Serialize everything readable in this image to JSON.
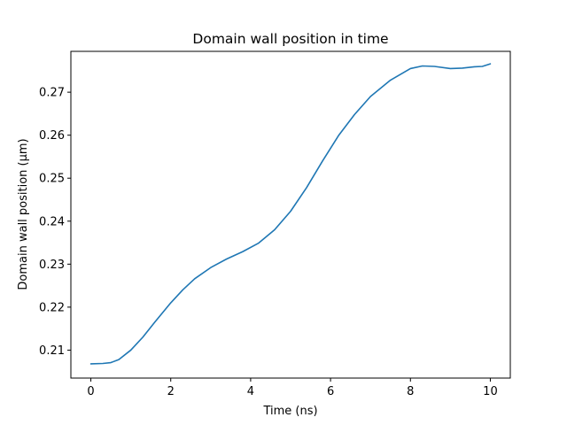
{
  "chart_data": {
    "type": "line",
    "title": "Domain wall position in time",
    "xlabel": "Time (ns)",
    "ylabel": "Domain wall position (µm)",
    "xlim": [
      -0.5,
      10.5
    ],
    "ylim": [
      0.2035,
      0.2795
    ],
    "xticks": [
      0,
      2,
      4,
      6,
      8,
      10
    ],
    "xtick_labels": [
      "0",
      "2",
      "4",
      "6",
      "8",
      "10"
    ],
    "yticks": [
      0.21,
      0.22,
      0.23,
      0.24,
      0.25,
      0.26,
      0.27
    ],
    "ytick_labels": [
      "0.21",
      "0.22",
      "0.23",
      "0.24",
      "0.25",
      "0.26",
      "0.27"
    ],
    "grid": false,
    "series": [
      {
        "color": "#1f77b4",
        "x": [
          0.0,
          0.3,
          0.5,
          0.7,
          1.0,
          1.3,
          1.6,
          2.0,
          2.3,
          2.6,
          3.0,
          3.4,
          3.8,
          4.2,
          4.6,
          5.0,
          5.4,
          5.8,
          6.2,
          6.6,
          7.0,
          7.5,
          8.0,
          8.3,
          8.6,
          9.0,
          9.3,
          9.6,
          9.8,
          10.0
        ],
        "y": [
          0.2068,
          0.2069,
          0.2071,
          0.2078,
          0.21,
          0.213,
          0.2165,
          0.221,
          0.224,
          0.2266,
          0.2292,
          0.2312,
          0.2329,
          0.2349,
          0.238,
          0.2423,
          0.2478,
          0.254,
          0.2599,
          0.2648,
          0.269,
          0.2728,
          0.2755,
          0.2761,
          0.276,
          0.2755,
          0.2756,
          0.2759,
          0.276,
          0.2766
        ]
      }
    ]
  }
}
